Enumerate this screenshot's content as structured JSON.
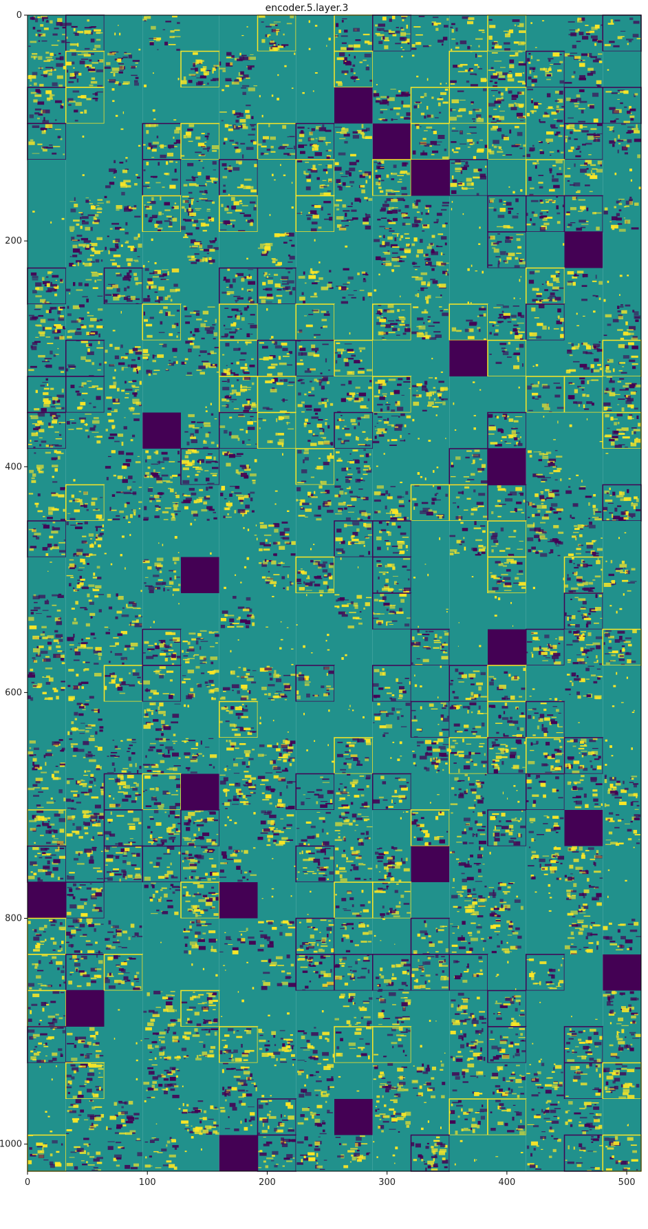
{
  "chart_data": {
    "type": "heatmap",
    "title": "encoder.5.layer.3",
    "xlabel": "",
    "ylabel": "",
    "xlim": [
      0,
      512
    ],
    "ylim": [
      1024,
      0
    ],
    "x_ticks": [
      0,
      100,
      200,
      300,
      400,
      500
    ],
    "y_ticks": [
      0,
      200,
      400,
      600,
      800,
      1000
    ],
    "grid": false,
    "grid_columns": 16,
    "grid_rows": 32,
    "tile_width": 32,
    "tile_height": 32,
    "colormap": "viridis",
    "colors": {
      "low": "#440154",
      "mid": "#21918c",
      "high": "#fde725"
    },
    "dark_tiles": [
      {
        "row": 2,
        "col": 8
      },
      {
        "row": 3,
        "col": 9
      },
      {
        "row": 4,
        "col": 10
      },
      {
        "row": 6,
        "col": 14
      },
      {
        "row": 9,
        "col": 11
      },
      {
        "row": 11,
        "col": 3
      },
      {
        "row": 12,
        "col": 12
      },
      {
        "row": 15,
        "col": 4
      },
      {
        "row": 17,
        "col": 12
      },
      {
        "row": 21,
        "col": 4
      },
      {
        "row": 22,
        "col": 14
      },
      {
        "row": 23,
        "col": 10
      },
      {
        "row": 24,
        "col": 0
      },
      {
        "row": 24,
        "col": 5
      },
      {
        "row": 26,
        "col": 15
      },
      {
        "row": 27,
        "col": 1
      },
      {
        "row": 30,
        "col": 8
      },
      {
        "row": 31,
        "col": 5
      }
    ]
  }
}
